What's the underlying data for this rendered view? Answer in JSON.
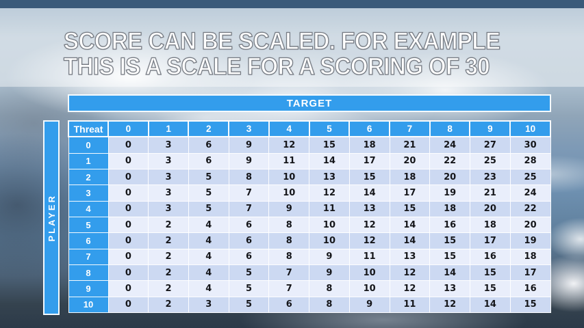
{
  "slide": {
    "title_line1": "SCORE CAN BE SCALED. FOR EXAMPLE",
    "title_line2": "THIS IS A SCALE FOR A SCORING OF 30"
  },
  "table": {
    "target_label": "TARGET",
    "player_label": "PLAYER",
    "corner_label": "Threat",
    "column_headers": [
      "0",
      "1",
      "2",
      "3",
      "4",
      "5",
      "6",
      "7",
      "8",
      "9",
      "10"
    ],
    "rows": [
      {
        "label": "0",
        "values": [
          0,
          3,
          6,
          9,
          12,
          15,
          18,
          21,
          24,
          27,
          30
        ]
      },
      {
        "label": "1",
        "values": [
          0,
          3,
          6,
          9,
          11,
          14,
          17,
          20,
          22,
          25,
          28
        ]
      },
      {
        "label": "2",
        "values": [
          0,
          3,
          5,
          8,
          10,
          13,
          15,
          18,
          20,
          23,
          25
        ]
      },
      {
        "label": "3",
        "values": [
          0,
          3,
          5,
          7,
          10,
          12,
          14,
          17,
          19,
          21,
          24
        ]
      },
      {
        "label": "4",
        "values": [
          0,
          3,
          5,
          7,
          9,
          11,
          13,
          15,
          18,
          20,
          22
        ]
      },
      {
        "label": "5",
        "values": [
          0,
          2,
          4,
          6,
          8,
          10,
          12,
          14,
          16,
          18,
          20
        ]
      },
      {
        "label": "6",
        "values": [
          0,
          2,
          4,
          6,
          8,
          10,
          12,
          14,
          15,
          17,
          19
        ]
      },
      {
        "label": "7",
        "values": [
          0,
          2,
          4,
          6,
          8,
          9,
          11,
          13,
          15,
          16,
          18
        ]
      },
      {
        "label": "8",
        "values": [
          0,
          2,
          4,
          5,
          7,
          9,
          10,
          12,
          14,
          15,
          17
        ]
      },
      {
        "label": "9",
        "values": [
          0,
          2,
          4,
          5,
          7,
          8,
          10,
          12,
          13,
          15,
          16
        ]
      },
      {
        "label": "10",
        "values": [
          0,
          2,
          3,
          5,
          6,
          8,
          9,
          11,
          12,
          14,
          15
        ]
      }
    ]
  },
  "colors": {
    "header_blue": "#339dec",
    "row_shade_a": "#ccd9f2",
    "row_shade_b": "#e9eefb",
    "cell_text": "#15161a",
    "title_fill": "#ffffff",
    "title_outline": "#757a82"
  }
}
